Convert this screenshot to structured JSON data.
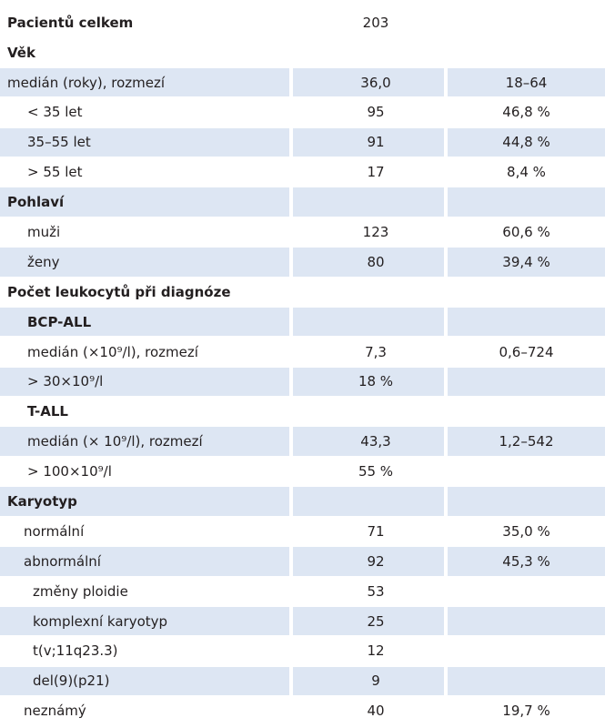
{
  "rows": [
    {
      "label": "Pacientů celkem",
      "value": "203",
      "pct": "",
      "bold": true,
      "indent": 0,
      "shade": false
    },
    {
      "label": "Věk",
      "value": "",
      "pct": "",
      "bold": true,
      "indent": 0,
      "shade": false
    },
    {
      "label": "medián (roky), rozmezí",
      "value": "36,0",
      "pct": "18–64",
      "bold": false,
      "indent": 0,
      "shade": true
    },
    {
      "label": "< 35 let",
      "value": "95",
      "pct": "46,8 %",
      "bold": false,
      "indent": 1,
      "shade": false
    },
    {
      "label": "35–55 let",
      "value": "91",
      "pct": "44,8 %",
      "bold": false,
      "indent": 1,
      "shade": true
    },
    {
      "label": "> 55 let",
      "value": "17",
      "pct": "8,4 %",
      "bold": false,
      "indent": 1,
      "shade": false
    },
    {
      "label": "Pohlaví",
      "value": "",
      "pct": "",
      "bold": true,
      "indent": 0,
      "shade": true
    },
    {
      "label": "muži",
      "value": "123",
      "pct": "60,6 %",
      "bold": false,
      "indent": 1,
      "shade": false
    },
    {
      "label": "ženy",
      "value": "80",
      "pct": "39,4 %",
      "bold": false,
      "indent": 1,
      "shade": true
    },
    {
      "label": "Počet leukocytů při diagnóze",
      "value": "",
      "pct": "",
      "bold": true,
      "indent": 0,
      "shade": false
    },
    {
      "label": "BCP-ALL",
      "value": "",
      "pct": "",
      "bold": true,
      "indent": 1,
      "shade": true
    },
    {
      "label": "medián (×10⁹/l), rozmezí",
      "value": "7,3",
      "pct": "0,6–724",
      "bold": false,
      "indent": 1,
      "shade": false
    },
    {
      "label": "> 30×10⁹/l",
      "value": "18 %",
      "pct": "",
      "bold": false,
      "indent": 1,
      "shade": true
    },
    {
      "label": "T-ALL",
      "value": "",
      "pct": "",
      "bold": true,
      "indent": 1,
      "shade": false
    },
    {
      "label": "medián (× 10⁹/l), rozmezí",
      "value": "43,3",
      "pct": "1,2–542",
      "bold": false,
      "indent": 1,
      "shade": true
    },
    {
      "label": "> 100×10⁹/l",
      "value": "55 %",
      "pct": "",
      "bold": false,
      "indent": 1,
      "shade": false
    },
    {
      "label": "Karyotyp",
      "value": "",
      "pct": "",
      "bold": true,
      "indent": 0,
      "shade": true
    },
    {
      "label": "normální",
      "value": "71",
      "pct": "35,0 %",
      "bold": false,
      "indent": 2,
      "shade": false
    },
    {
      "label": "abnormální",
      "value": "92",
      "pct": "45,3 %",
      "bold": false,
      "indent": 2,
      "shade": true
    },
    {
      "label": "změny ploidie",
      "value": "53",
      "pct": "",
      "bold": false,
      "indent": 3,
      "shade": false
    },
    {
      "label": "komplexní karyotyp",
      "value": "25",
      "pct": "",
      "bold": false,
      "indent": 3,
      "shade": true
    },
    {
      "label": "t(v;11q23.3)",
      "value": "12",
      "pct": "",
      "bold": false,
      "indent": 3,
      "shade": false
    },
    {
      "label": "del(9)(p21)",
      "value": "9",
      "pct": "",
      "bold": false,
      "indent": 3,
      "shade": true
    },
    {
      "label": "neznámý",
      "value": "40",
      "pct": "19,7 %",
      "bold": false,
      "indent": 2,
      "shade": false
    }
  ],
  "colors": {
    "shade": "#dde6f3",
    "text": "#231f20"
  }
}
